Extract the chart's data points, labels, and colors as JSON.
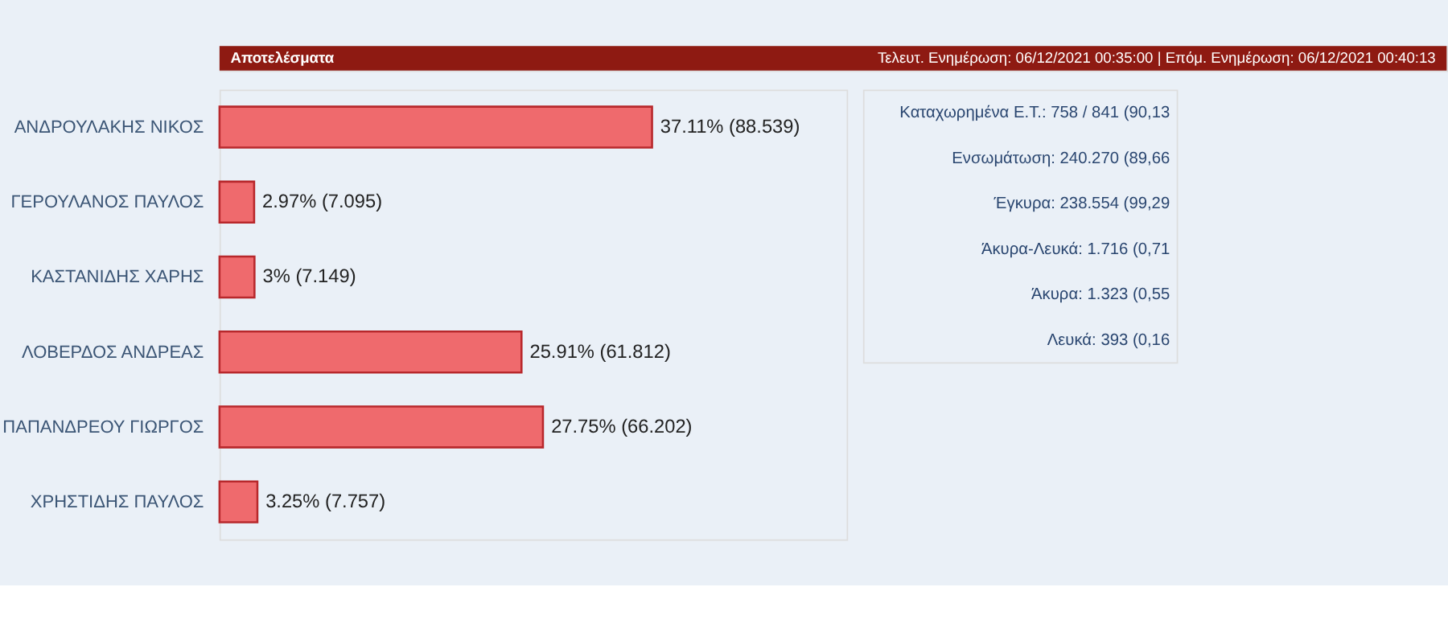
{
  "chart_data": {
    "type": "bar",
    "orientation": "horizontal",
    "title": "Αποτελέσματα",
    "categories": [
      "ΑΝΔΡΟΥΛΑΚΗΣ ΝΙΚΟΣ",
      "ΓΕΡΟΥΛΑΝΟΣ ΠΑΥΛΟΣ",
      "ΚΑΣΤΑΝΙΔΗΣ ΧΑΡΗΣ",
      "ΛΟΒΕΡΔΟΣ ΑΝΔΡΕΑΣ",
      "ΠΑΠΑΝΔΡΕΟΥ ΓΙΩΡΓΟΣ",
      "ΧΡΗΣΤΙΔΗΣ ΠΑΥΛΟΣ"
    ],
    "values": [
      37.11,
      2.97,
      3,
      25.91,
      27.75,
      3.25
    ],
    "value_labels": [
      "37.11% (88.539)",
      "2.97% (7.095)",
      "3% (7.149)",
      "25.91% (61.812)",
      "27.75% (66.202)",
      "3.25% (7.757)"
    ],
    "color": "#ef6a6d",
    "grid": false,
    "annotations": [
      "Τελευτ. Ενημέρωση: 06/12/2021 00:35:00  |  Επόμ. Ενημέρωση: 06/12/2021 00:40:13",
      "Καταχωρημένα Ε.Τ.: 758 / 841 (90,13",
      "Ενσωμάτωση: 240.270 (89,66",
      "Έγκυρα: 238.554 (99,29",
      "Άκυρα-Λευκά: 1.716 (0,71",
      "Άκυρα: 1.323 (0,55",
      "Λευκά: 393 (0,16"
    ]
  }
}
